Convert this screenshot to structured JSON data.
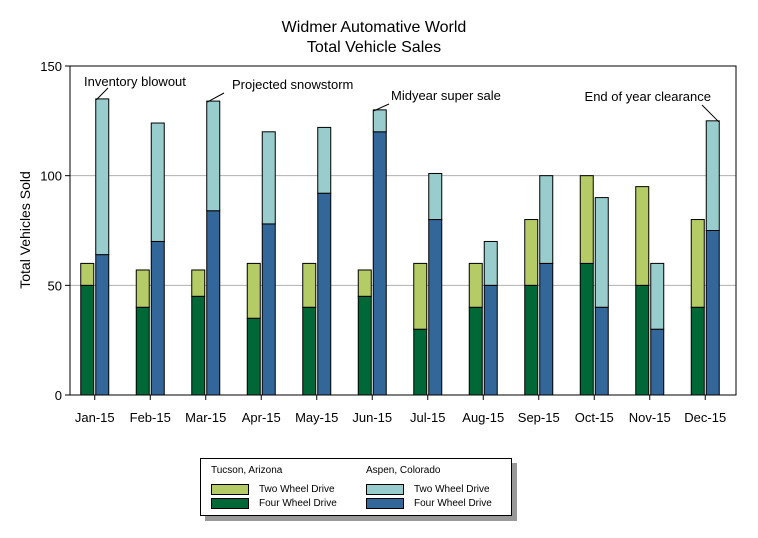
{
  "chart_data": {
    "type": "bar",
    "title": "Widmer Automative World",
    "subtitle": "Total Vehicle Sales",
    "ylabel": "Total Vehicles Sold",
    "xlabel": "",
    "ylim": [
      0,
      150
    ],
    "yticks": [
      0,
      50,
      100,
      150
    ],
    "grid": true,
    "categories": [
      "Jan-15",
      "Feb-15",
      "Mar-15",
      "Apr-15",
      "May-15",
      "Jun-15",
      "Jul-15",
      "Aug-15",
      "Sep-15",
      "Oct-15",
      "Nov-15",
      "Dec-15"
    ],
    "stacks": [
      {
        "name": "Tucson, Arizona",
        "series": [
          {
            "name": "Four Wheel Drive",
            "color": "#006837",
            "values": [
              50,
              40,
              45,
              35,
              40,
              45,
              30,
              40,
              50,
              60,
              50,
              40
            ]
          },
          {
            "name": "Two Wheel Drive",
            "color": "#b5cc66",
            "values": [
              10,
              17,
              12,
              25,
              20,
              12,
              30,
              20,
              30,
              40,
              45,
              40
            ]
          }
        ]
      },
      {
        "name": "Aspen, Colorado",
        "series": [
          {
            "name": "Four Wheel Drive",
            "color": "#336699",
            "values": [
              64,
              70,
              84,
              78,
              92,
              120,
              80,
              50,
              60,
              40,
              30,
              75
            ]
          },
          {
            "name": "Two Wheel Drive",
            "color": "#99cccc",
            "values": [
              71,
              54,
              50,
              42,
              30,
              10,
              21,
              20,
              40,
              50,
              30,
              50
            ]
          }
        ]
      }
    ],
    "annotations": [
      {
        "text": "Inventory blowout",
        "category": "Jan-15",
        "value": 135
      },
      {
        "text": "Projected snowstorm",
        "category": "Mar-15",
        "value": 134
      },
      {
        "text": "Midyear super sale",
        "category": "Jun-15",
        "value": 130
      },
      {
        "text": "End of year clearance",
        "category": "Dec-15",
        "value": 125
      }
    ],
    "legend_position": "bottom"
  },
  "legend": {
    "groups": [
      {
        "title": "Tucson, Arizona",
        "items": [
          {
            "label": "Two Wheel Drive",
            "color": "#b5cc66"
          },
          {
            "label": "Four Wheel Drive",
            "color": "#006837"
          }
        ]
      },
      {
        "title": "Aspen, Colorado",
        "items": [
          {
            "label": "Two Wheel Drive",
            "color": "#99cccc"
          },
          {
            "label": "Four Wheel Drive",
            "color": "#336699"
          }
        ]
      }
    ]
  }
}
